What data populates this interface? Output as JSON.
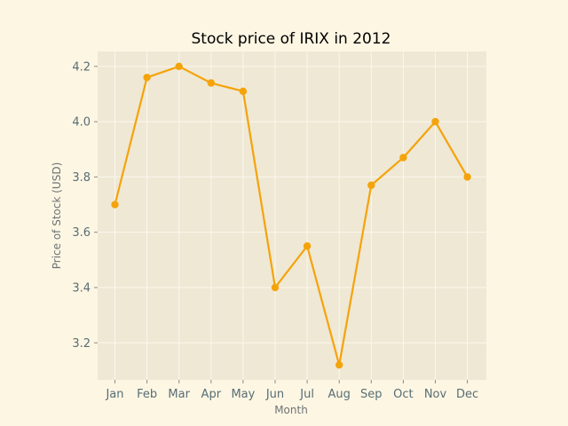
{
  "chart_data": {
    "type": "line",
    "title": "Stock price of IRIX in 2012",
    "xlabel": "Month",
    "ylabel": "Price of Stock (USD)",
    "categories": [
      "Jan",
      "Feb",
      "Mar",
      "Apr",
      "May",
      "Jun",
      "Jul",
      "Aug",
      "Sep",
      "Oct",
      "Nov",
      "Dec"
    ],
    "series": [
      {
        "values": [
          3.7,
          4.16,
          4.2,
          4.14,
          4.11,
          3.4,
          3.55,
          3.12,
          3.77,
          3.87,
          4.0,
          3.8
        ],
        "color": "#f5a30a"
      }
    ],
    "yticks": [
      "3.2",
      "3.4",
      "3.6",
      "3.8",
      "4.0",
      "4.2"
    ],
    "ylim": [
      3.066,
      4.254
    ],
    "grid": true,
    "legend": "none",
    "colors": {
      "page_background": "#fdf6e3",
      "plot_background": "#efe8d5",
      "grid": "#fbf7ec",
      "line": "#f5a30a"
    }
  }
}
